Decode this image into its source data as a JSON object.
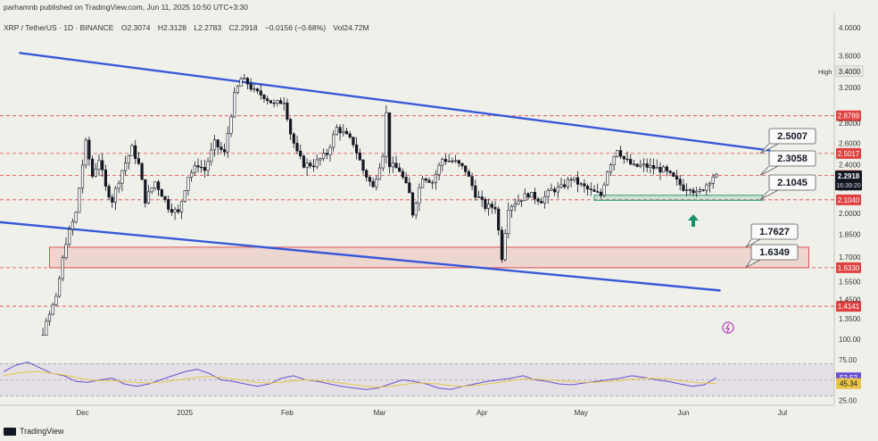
{
  "header": {
    "published": "parhamnb published on TradingView.com, Jun 11, 2025 10:50 UTC+3:30"
  },
  "symbol": {
    "name": "XRP / TetherUS · 1D · BINANCE",
    "open": "O2.3074",
    "high": "H2.3128",
    "low": "L2.2783",
    "close": "C2.2918",
    "change": "−0.0156 (−0.68%)",
    "volume": "Vol24.72M"
  },
  "footer": {
    "brand": "TradingView"
  },
  "colors": {
    "trendline": "#3659d8",
    "support_zone": "#2e9b6e",
    "demand_zone": "#e05252",
    "level_line": "#e04040",
    "up_candle": "#ffffff",
    "down_candle": "#131722",
    "rsi_line": "#6a4fd0",
    "rsi_ma": "#e8c547",
    "arrow": "#17906a"
  },
  "chart_data": [
    {
      "type": "candlestick",
      "title": "",
      "price_axis": {
        "ticks": [
          "4.0000",
          "3.6000",
          "3.2000",
          "2.8000",
          "2.6000",
          "2.4000",
          "2.2000",
          "2.0000",
          "1.8500",
          "1.7000",
          "1.5500",
          "1.4500",
          "1.3500"
        ],
        "high_label": "High",
        "high_value": "3.4000",
        "current_price": "2.2918",
        "countdown": "16:39:20",
        "scale": "log",
        "ylim": [
          1.3,
          4.1
        ]
      },
      "time_axis": {
        "ticks": [
          "Dec",
          "2025",
          "Feb",
          "Mar",
          "Apr",
          "May",
          "Jun",
          "Jul"
        ]
      },
      "levels": [
        "2.8789",
        "2.5017",
        "2.3033",
        "2.1040",
        "1.6330",
        "1.4141"
      ],
      "annotations": {
        "callouts": [
          "2.5007",
          "2.3058",
          "2.1045",
          "1.7627",
          "1.6349"
        ]
      },
      "trendlines": [
        {
          "name": "upper channel",
          "points": [
            [
              "Nov 12",
              3.64
            ],
            [
              "Jun 27",
              2.53
            ]
          ]
        },
        {
          "name": "lower channel",
          "points": [
            [
              "Nov 4",
              1.94
            ],
            [
              "Jun 12",
              1.5
            ]
          ]
        }
      ],
      "zones": [
        {
          "name": "support",
          "from": "May 5",
          "to": "Jun 25",
          "low": 2.1,
          "high": 2.14
        },
        {
          "name": "demand",
          "from": "Nov 21",
          "to": "Jul 9",
          "low": 1.633,
          "high": 1.763
        }
      ],
      "price_path": [
        [
          "Nov 12",
          1.0
        ],
        [
          "Nov 17",
          1.15
        ],
        [
          "Nov 20",
          1.35
        ],
        [
          "Nov 23",
          1.45
        ],
        [
          "Nov 26",
          1.8
        ],
        [
          "Nov 29",
          2.0
        ],
        [
          "Dec 2",
          2.6
        ],
        [
          "Dec 4",
          2.3
        ],
        [
          "Dec 6",
          2.45
        ],
        [
          "Dec 8",
          2.2
        ],
        [
          "Dec 10",
          2.1
        ],
        [
          "Dec 13",
          2.35
        ],
        [
          "Dec 16",
          2.55
        ],
        [
          "Dec 18",
          2.4
        ],
        [
          "Dec 20",
          2.1
        ],
        [
          "Dec 23",
          2.25
        ],
        [
          "Dec 27",
          2.05
        ],
        [
          "Dec 30",
          2.0
        ],
        [
          "Jan 2",
          2.3
        ],
        [
          "Jan 5",
          2.4
        ],
        [
          "Jan 7",
          2.35
        ],
        [
          "Jan 10",
          2.6
        ],
        [
          "Jan 13",
          2.5
        ],
        [
          "Jan 16",
          3.1
        ],
        [
          "Jan 18",
          3.3
        ],
        [
          "Jan 20",
          3.25
        ],
        [
          "Jan 22",
          3.15
        ],
        [
          "Jan 25",
          3.1
        ],
        [
          "Jan 28",
          3.0
        ],
        [
          "Jan 31",
          3.05
        ],
        [
          "Feb 2",
          2.7
        ],
        [
          "Feb 4",
          2.5
        ],
        [
          "Feb 6",
          2.4
        ],
        [
          "Feb 9",
          2.4
        ],
        [
          "Feb 13",
          2.5
        ],
        [
          "Feb 16",
          2.75
        ],
        [
          "Feb 18",
          2.7
        ],
        [
          "Feb 21",
          2.6
        ],
        [
          "Feb 24",
          2.35
        ],
        [
          "Feb 27",
          2.2
        ],
        [
          "Mar 2",
          2.5
        ],
        [
          "Mar 3",
          2.9
        ],
        [
          "Mar 4",
          2.4
        ],
        [
          "Mar 7",
          2.35
        ],
        [
          "Mar 10",
          2.15
        ],
        [
          "Mar 11",
          2.0
        ],
        [
          "Mar 14",
          2.3
        ],
        [
          "Mar 17",
          2.25
        ],
        [
          "Mar 20",
          2.45
        ],
        [
          "Mar 24",
          2.42
        ],
        [
          "Mar 27",
          2.35
        ],
        [
          "Mar 30",
          2.15
        ],
        [
          "Apr 2",
          2.05
        ],
        [
          "Apr 5",
          2.05
        ],
        [
          "Apr 7",
          1.7
        ],
        [
          "Apr 9",
          2.05
        ],
        [
          "Apr 12",
          2.1
        ],
        [
          "Apr 15",
          2.15
        ],
        [
          "Apr 19",
          2.1
        ],
        [
          "Apr 22",
          2.18
        ],
        [
          "Apr 25",
          2.2
        ],
        [
          "Apr 28",
          2.28
        ],
        [
          "May 1",
          2.22
        ],
        [
          "May 4",
          2.17
        ],
        [
          "May 7",
          2.14
        ],
        [
          "May 9",
          2.35
        ],
        [
          "May 12",
          2.55
        ],
        [
          "May 14",
          2.45
        ],
        [
          "May 17",
          2.38
        ],
        [
          "May 20",
          2.39
        ],
        [
          "May 23",
          2.37
        ],
        [
          "May 26",
          2.35
        ],
        [
          "May 29",
          2.28
        ],
        [
          "Jun 1",
          2.2
        ],
        [
          "Jun 3",
          2.21
        ],
        [
          "Jun 5",
          2.15
        ],
        [
          "Jun 6",
          2.17
        ],
        [
          "Jun 8",
          2.23
        ],
        [
          "Jun 10",
          2.3
        ],
        [
          "Jun 11",
          2.29
        ]
      ]
    },
    {
      "type": "line",
      "title": "",
      "axis_ticks": [
        "100.00",
        "75.00",
        "25.00"
      ],
      "series": [
        {
          "name": "",
          "value_label": "52.52",
          "values": [
            60,
            68,
            72,
            65,
            58,
            55,
            48,
            47,
            50,
            52,
            45,
            42,
            45,
            50,
            55,
            60,
            63,
            58,
            50,
            48,
            45,
            42,
            45,
            52,
            55,
            50,
            48,
            45,
            42,
            40,
            38,
            40,
            45,
            50,
            48,
            45,
            40,
            38,
            42,
            45,
            48,
            50,
            52,
            55,
            50,
            48,
            45,
            44,
            46,
            48,
            50,
            52,
            55,
            53,
            50,
            48,
            45,
            42,
            44,
            52.52
          ]
        },
        {
          "name": "",
          "value_label": "45.34",
          "values": [
            55,
            58,
            60,
            60,
            58,
            56,
            53,
            50,
            49,
            49,
            48,
            47,
            46,
            47,
            49,
            51,
            53,
            54,
            53,
            51,
            49,
            47,
            46,
            47,
            49,
            50,
            49,
            48,
            46,
            44,
            42,
            41,
            42,
            44,
            46,
            46,
            45,
            43,
            42,
            43,
            45,
            47,
            49,
            51,
            51,
            50,
            49,
            48,
            47,
            47,
            48,
            49,
            51,
            52,
            52,
            51,
            49,
            47,
            46,
            45.34
          ]
        }
      ]
    }
  ]
}
